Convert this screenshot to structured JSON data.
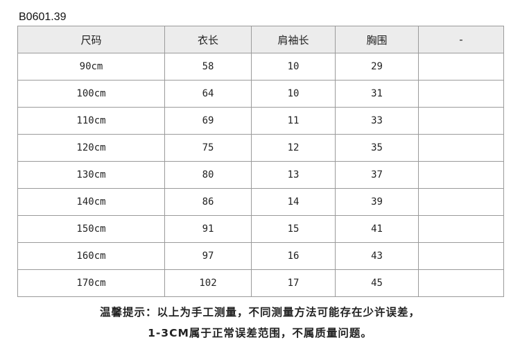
{
  "product_code": "B0601.39",
  "table": {
    "headers": [
      "尺码",
      "衣长",
      "肩袖长",
      "胸围",
      "-"
    ],
    "rows": [
      [
        "90cm",
        "58",
        "10",
        "29",
        ""
      ],
      [
        "100cm",
        "64",
        "10",
        "31",
        ""
      ],
      [
        "110cm",
        "69",
        "11",
        "33",
        ""
      ],
      [
        "120cm",
        "75",
        "12",
        "35",
        ""
      ],
      [
        "130cm",
        "80",
        "13",
        "37",
        ""
      ],
      [
        "140cm",
        "86",
        "14",
        "39",
        ""
      ],
      [
        "150cm",
        "91",
        "15",
        "41",
        ""
      ],
      [
        "160cm",
        "97",
        "16",
        "43",
        ""
      ],
      [
        "170cm",
        "102",
        "17",
        "45",
        ""
      ]
    ]
  },
  "notes": {
    "line1": "温馨提示：以上为手工测量，不同测量方法可能存在少许误差，",
    "line2": "1-3CM属于正常误差范围，不属质量问题。"
  },
  "colors": {
    "header_bg": "#ececec",
    "border": "#9a9a9a"
  }
}
